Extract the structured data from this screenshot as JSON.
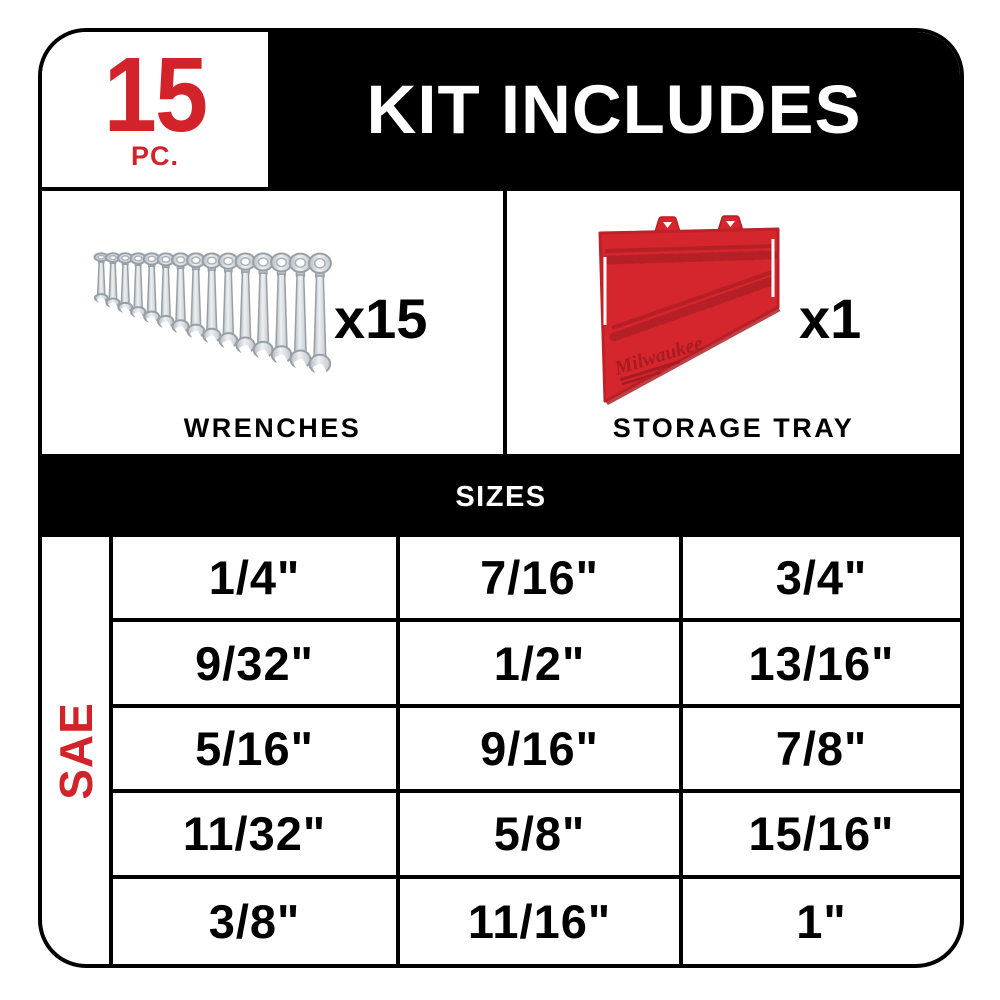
{
  "colors": {
    "brand_red": "#D2232A",
    "panel_black": "#000000",
    "tray_red": "#D5262D",
    "tray_dark_red": "#A81B21",
    "wrench_silver": "#C7CCD1"
  },
  "header": {
    "piece_count": "15",
    "piece_unit": "PC.",
    "title": "KIT INCLUDES"
  },
  "products": [
    {
      "caption": "WRENCHES",
      "quantity": "x15",
      "illustration": "ratcheting-combination-wrench-set"
    },
    {
      "caption": "STORAGE TRAY",
      "quantity": "x1",
      "illustration": "red-wall-mount-storage-tray",
      "tray_logo": "Milwaukee"
    }
  ],
  "sizes": {
    "title": "SIZES",
    "standard": "SAE",
    "rows": [
      [
        "1/4\"",
        "7/16\"",
        "3/4\""
      ],
      [
        "9/32\"",
        "1/2\"",
        "13/16\""
      ],
      [
        "5/16\"",
        "9/16\"",
        "7/8\""
      ],
      [
        "11/32\"",
        "5/8\"",
        "15/16\""
      ],
      [
        "3/8\"",
        "11/16\"",
        "1\""
      ]
    ]
  }
}
